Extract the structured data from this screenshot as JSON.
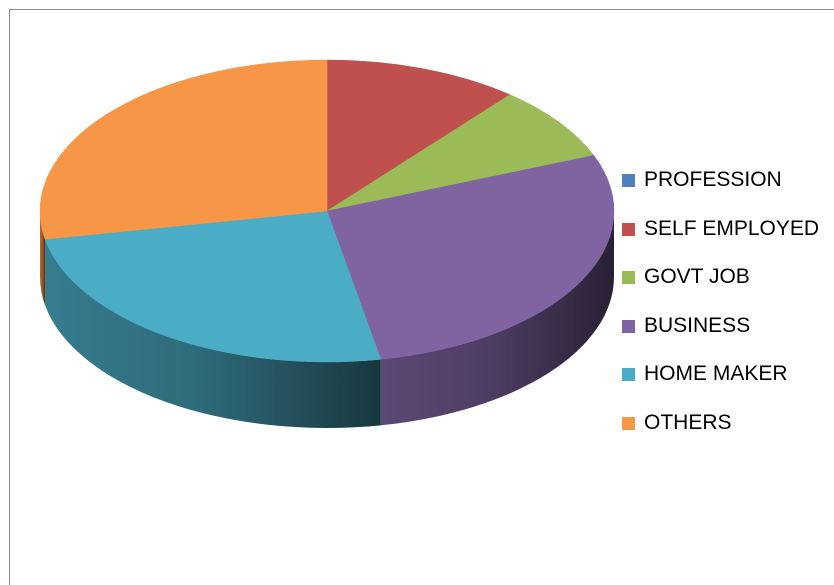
{
  "chart_data": {
    "type": "pie",
    "style": "3d-exploded-none",
    "legend_position": "right",
    "slices": [
      {
        "label": "PROFESSION",
        "value": 0,
        "color": "#4F81BD"
      },
      {
        "label": "SELF EMPLOYED",
        "value": 11,
        "color": "#C0504D"
      },
      {
        "label": "GOVT JOB",
        "value": 8,
        "color": "#9BBB59"
      },
      {
        "label": "BUSINESS",
        "value": 28,
        "color": "#8064A2"
      },
      {
        "label": "HOME MAKER",
        "value": 25,
        "color": "#4BACC6"
      },
      {
        "label": "OTHERS",
        "value": 28,
        "color": "#F79646"
      }
    ]
  }
}
